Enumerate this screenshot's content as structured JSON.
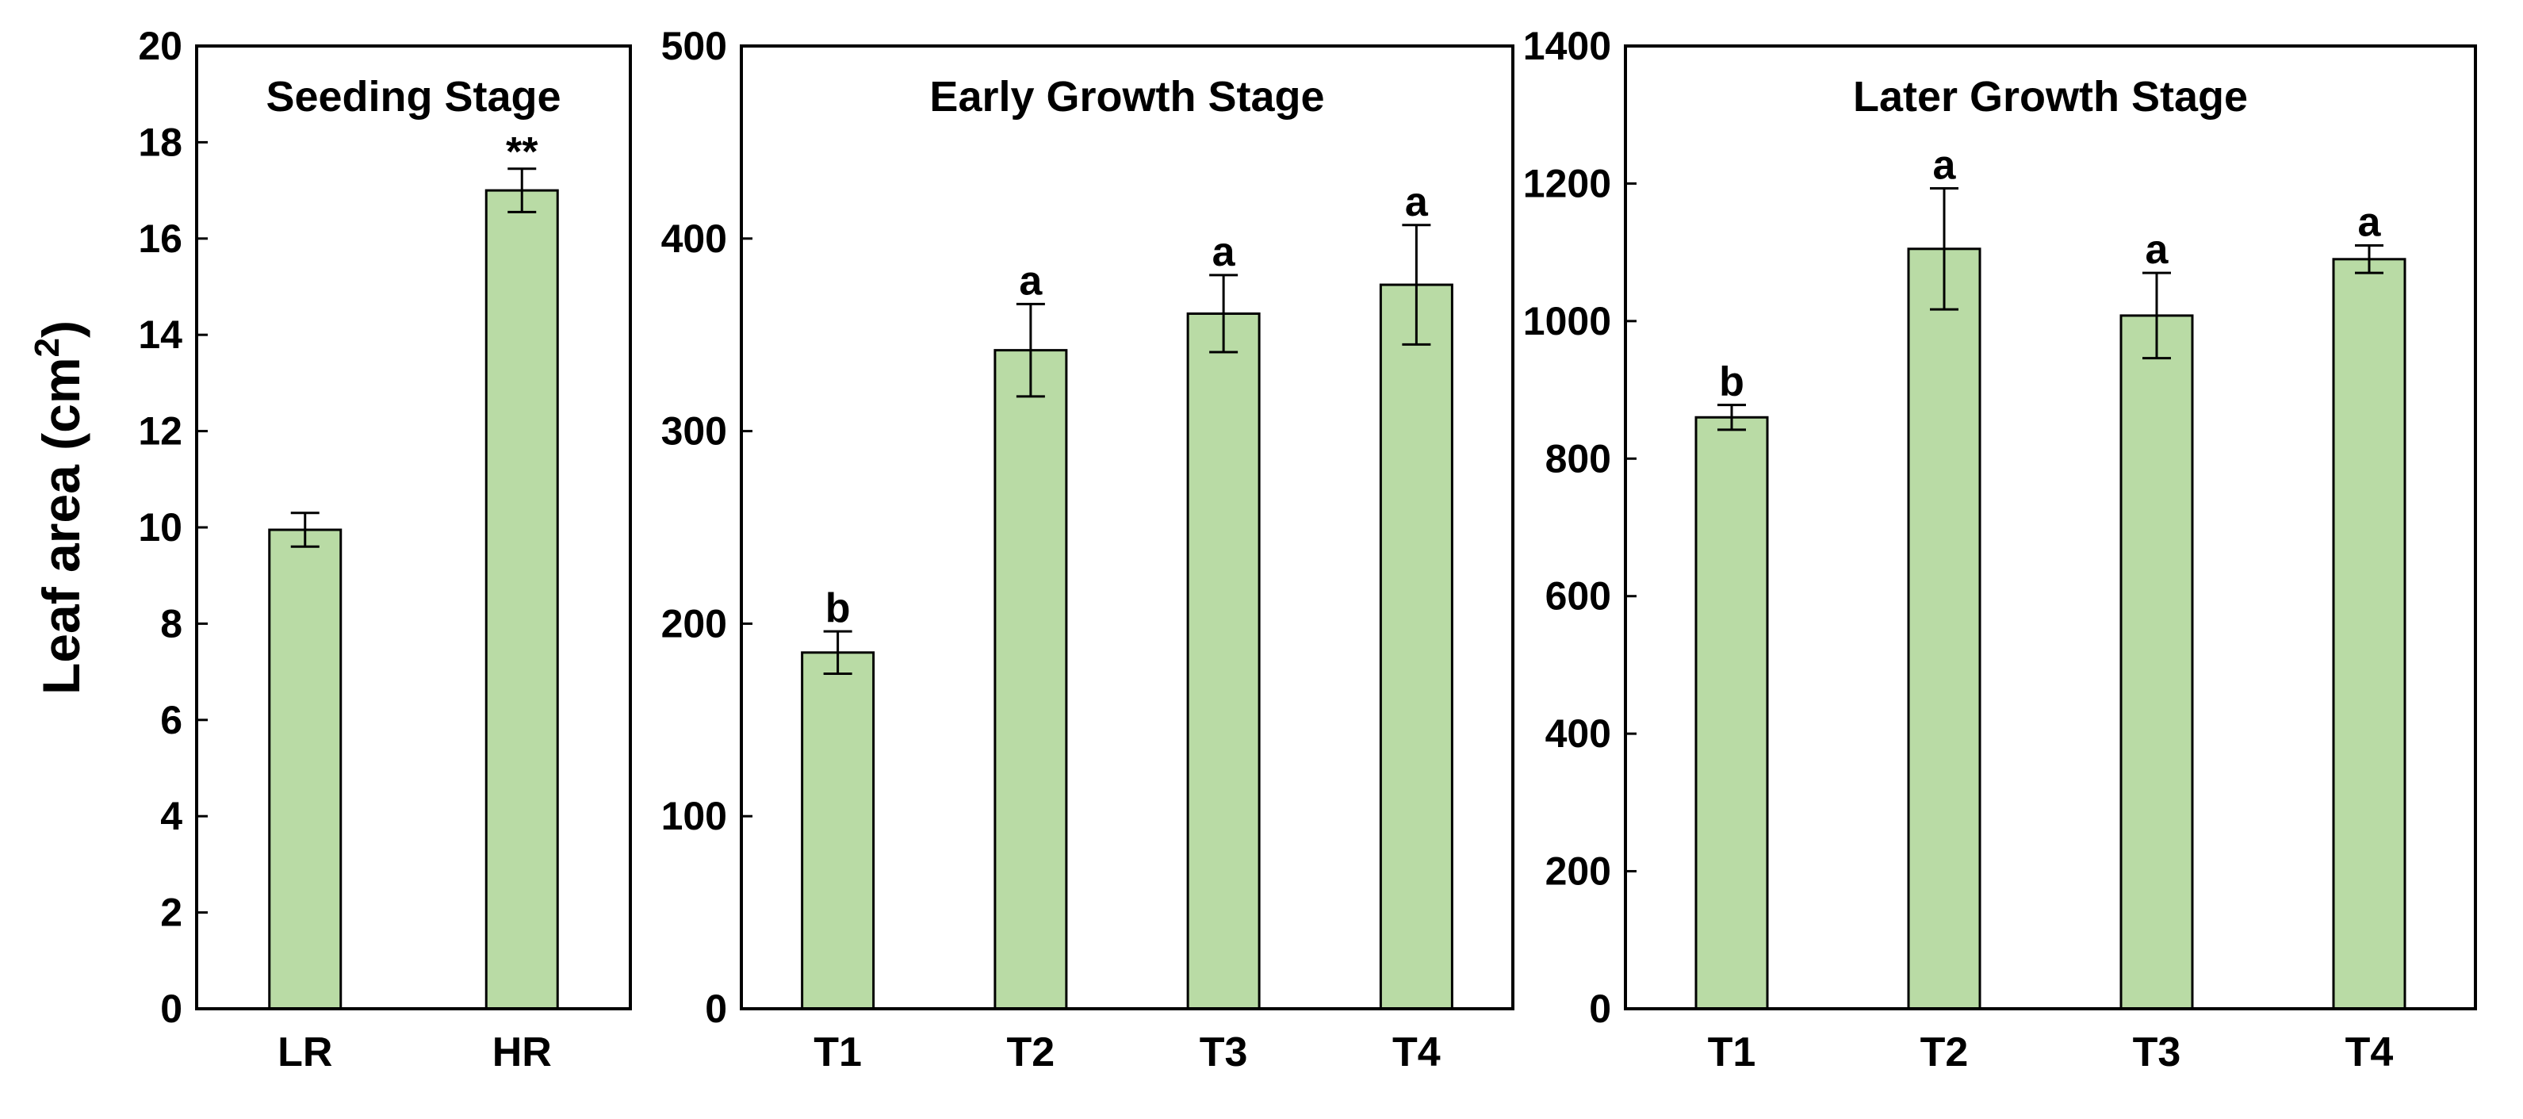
{
  "figure": {
    "ylabel_main": "Leaf area (cm",
    "ylabel_sup": "2",
    "ylabel_close": ")"
  },
  "colors": {
    "bar_fill": "#b9dba5",
    "bar_stroke": "#000000",
    "axis": "#000000"
  },
  "chart_data": [
    {
      "type": "bar",
      "title": "Seeding Stage",
      "categories": [
        "LR",
        "HR"
      ],
      "values": [
        9.95,
        17.0
      ],
      "errors": [
        0.35,
        0.45
      ],
      "significance": [
        "",
        "**"
      ],
      "ylim": [
        0,
        20
      ],
      "yticks": [
        "0",
        "2",
        "4",
        "6",
        "8",
        "10",
        "12",
        "14",
        "16",
        "18",
        "20"
      ],
      "ylabel": "Leaf area (cm2)",
      "xlabel": "",
      "grid": false
    },
    {
      "type": "bar",
      "title": "Early Growth Stage",
      "categories": [
        "T1",
        "T2",
        "T3",
        "T4"
      ],
      "values": [
        185,
        342,
        361,
        376
      ],
      "errors": [
        11,
        24,
        20,
        31
      ],
      "significance": [
        "b",
        "a",
        "a",
        "a"
      ],
      "ylim": [
        0,
        500
      ],
      "yticks": [
        "0",
        "100",
        "200",
        "300",
        "400",
        "500"
      ],
      "xlabel": "",
      "grid": false
    },
    {
      "type": "bar",
      "title": "Later Growth Stage",
      "categories": [
        "T1",
        "T2",
        "T3",
        "T4"
      ],
      "values": [
        860,
        1105,
        1008,
        1090
      ],
      "errors": [
        18,
        88,
        62,
        20
      ],
      "significance": [
        "b",
        "a",
        "a",
        "a"
      ],
      "ylim": [
        0,
        1400
      ],
      "yticks": [
        "0",
        "200",
        "400",
        "600",
        "800",
        "1000",
        "1200",
        "1400"
      ],
      "xlabel": "",
      "grid": false
    }
  ]
}
